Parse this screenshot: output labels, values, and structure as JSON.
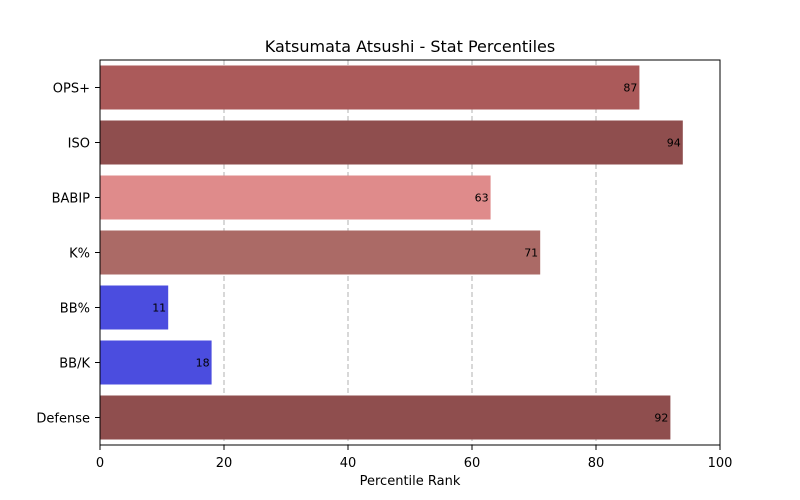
{
  "chart_data": {
    "type": "bar",
    "orientation": "horizontal",
    "title": "Katsumata Atsushi - Stat Percentiles",
    "xlabel": "Percentile Rank",
    "ylabel": "",
    "xlim": [
      0,
      100
    ],
    "xticks": [
      "0",
      "20",
      "40",
      "60",
      "80",
      "100"
    ],
    "grid": "x-dashed",
    "categories": [
      "OPS+",
      "ISO",
      "BABIP",
      "K%",
      "BB%",
      "BB/K",
      "Defense"
    ],
    "values": [
      87,
      94,
      63,
      71,
      11,
      18,
      92
    ],
    "bar_labels": [
      "87",
      "94",
      "63",
      "71",
      "11",
      "18",
      "92"
    ],
    "colors": [
      "#ab5a5a",
      "#8f4e4e",
      "#df8b8b",
      "#ab6a66",
      "#4b4ddf",
      "#4b4ddf",
      "#8f4e4e"
    ]
  }
}
